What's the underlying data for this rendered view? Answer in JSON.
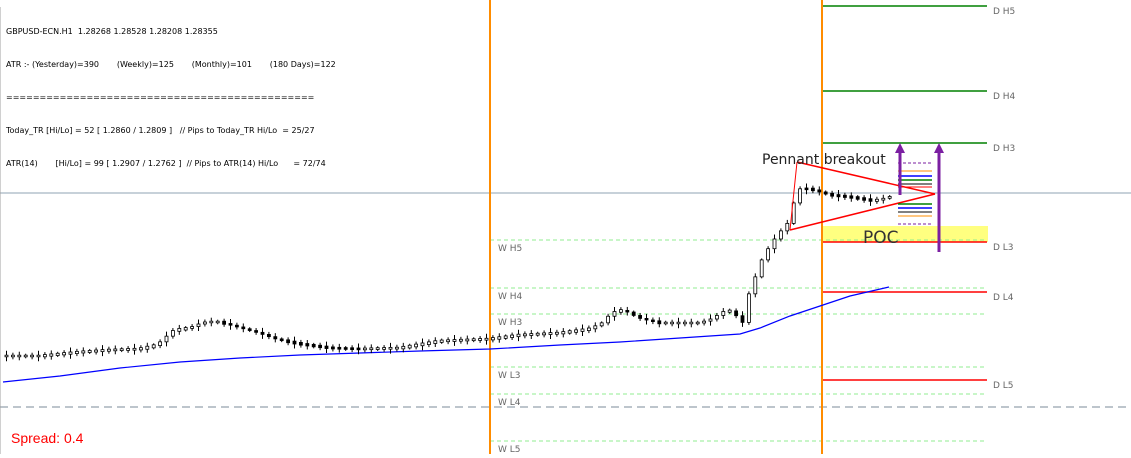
{
  "header": {
    "symbol_line": "GBPUSD-ECN.H1  1.28268 1.28528 1.28208 1.28355",
    "atr_line": "ATR :- (Yesterday)=390       (Weekly)=125       (Monthly)=101       (180 Days)=122",
    "separator": "==============================================",
    "today_tr_line": "Today_TR [Hi/Lo] = 52 [ 1.2860 / 1.2809 ]   // Pips to Today_TR Hi/Lo  = 25/27",
    "atr14_line": "ATR(14)       [Hi/Lo] = 99 [ 1.2907 / 1.2762 ]  // Pips to ATR(14) Hi/Lo      = 72/74"
  },
  "spread": {
    "label": "Spread:",
    "value": "0.4"
  },
  "colors": {
    "daily_resistance": "#008000",
    "daily_support": "#ff0000",
    "weekly_level": "#90ee90",
    "session_line": "#ff8c00",
    "moving_average": "#0000ff",
    "pennant": "#ff0000",
    "poc_zone": "#ffff80",
    "arrow": "#7b1fa2"
  },
  "chart_data": {
    "type": "candlestick",
    "annotations": [
      "Pennant breakout",
      "POC"
    ],
    "daily_levels": [
      {
        "label": "D  H5",
        "kind": "resistance"
      },
      {
        "label": "D  H4",
        "kind": "resistance"
      },
      {
        "label": "D  H3",
        "kind": "resistance"
      },
      {
        "label": "D  L3",
        "kind": "support"
      },
      {
        "label": "D  L4",
        "kind": "support"
      },
      {
        "label": "D  L5",
        "kind": "support"
      }
    ],
    "weekly_levels": [
      {
        "label": "W  H5"
      },
      {
        "label": "W  H4"
      },
      {
        "label": "W  H3"
      },
      {
        "label": "W  L3"
      },
      {
        "label": "W  L4"
      },
      {
        "label": "W  L5"
      }
    ]
  }
}
